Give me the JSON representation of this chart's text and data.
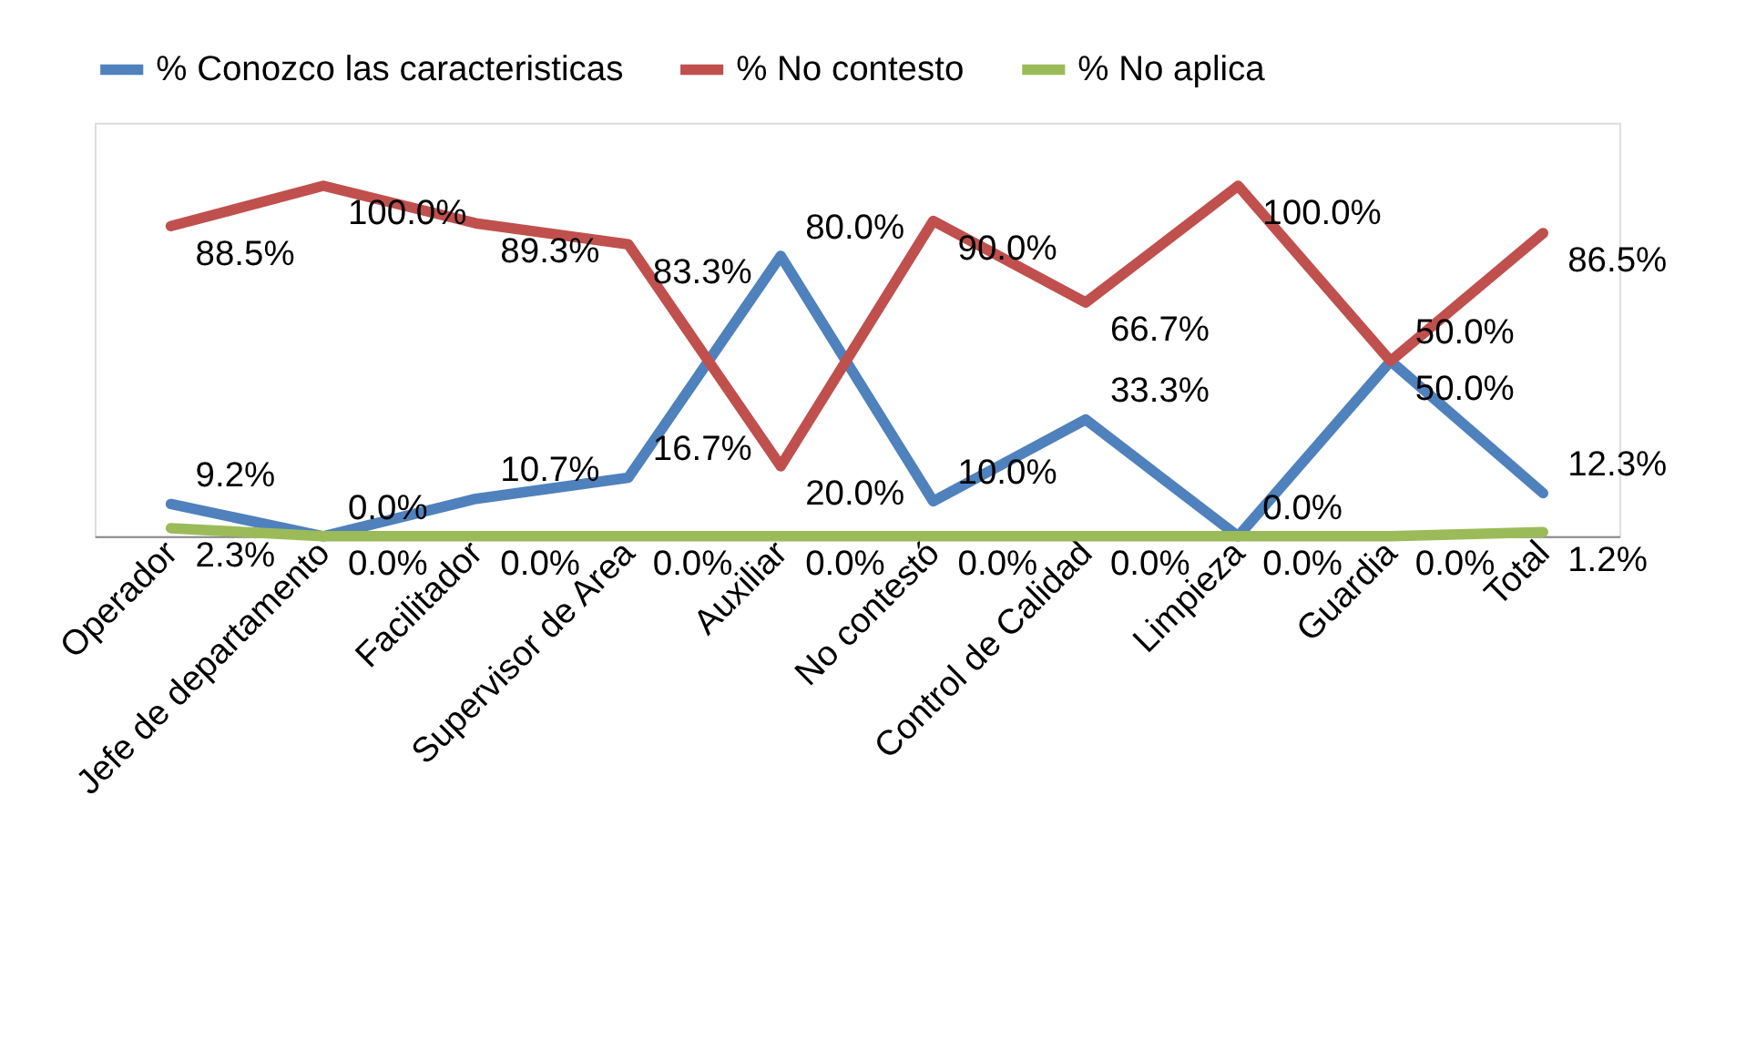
{
  "chart_data": {
    "type": "line",
    "categories": [
      "Operador",
      "Jefe de departamento",
      "Facilitador",
      "Supervisor de Area",
      "Auxiliar",
      "No contestó",
      "Control de Calidad",
      "Limpieza",
      "Guardia",
      "Total"
    ],
    "series": [
      {
        "name": "% Conozco las caracteristicas",
        "color": "#4f81bd",
        "values": [
          9.2,
          0.0,
          10.7,
          16.7,
          80.0,
          10.0,
          33.3,
          0.0,
          50.0,
          12.3
        ],
        "value_labels": [
          "9.2%",
          "0.0%",
          "10.7%",
          "16.7%",
          "80.0%",
          "10.0%",
          "33.3%",
          "0.0%",
          "50.0%",
          "12.3%"
        ]
      },
      {
        "name": "% No contesto",
        "color": "#c0504d",
        "values": [
          88.5,
          100.0,
          89.3,
          83.3,
          20.0,
          90.0,
          66.7,
          100.0,
          50.0,
          86.5
        ],
        "value_labels": [
          "88.5%",
          "100.0%",
          "89.3%",
          "83.3%",
          "20.0%",
          "90.0%",
          "66.7%",
          "100.0%",
          "50.0%",
          "86.5%"
        ]
      },
      {
        "name": "% No aplica",
        "color": "#9bbb59",
        "values": [
          2.3,
          0.0,
          0.0,
          0.0,
          0.0,
          0.0,
          0.0,
          0.0,
          0.0,
          1.2
        ],
        "value_labels": [
          "2.3%",
          "0.0%",
          "0.0%",
          "0.0%",
          "0.0%",
          "0.0%",
          "0.0%",
          "0.0%",
          "0.0%",
          "1.2%"
        ]
      }
    ],
    "ylim": [
      0,
      118
    ],
    "tick_labels": "x",
    "grid": false,
    "legend": "top",
    "marker": "none",
    "line_style": "solid"
  }
}
